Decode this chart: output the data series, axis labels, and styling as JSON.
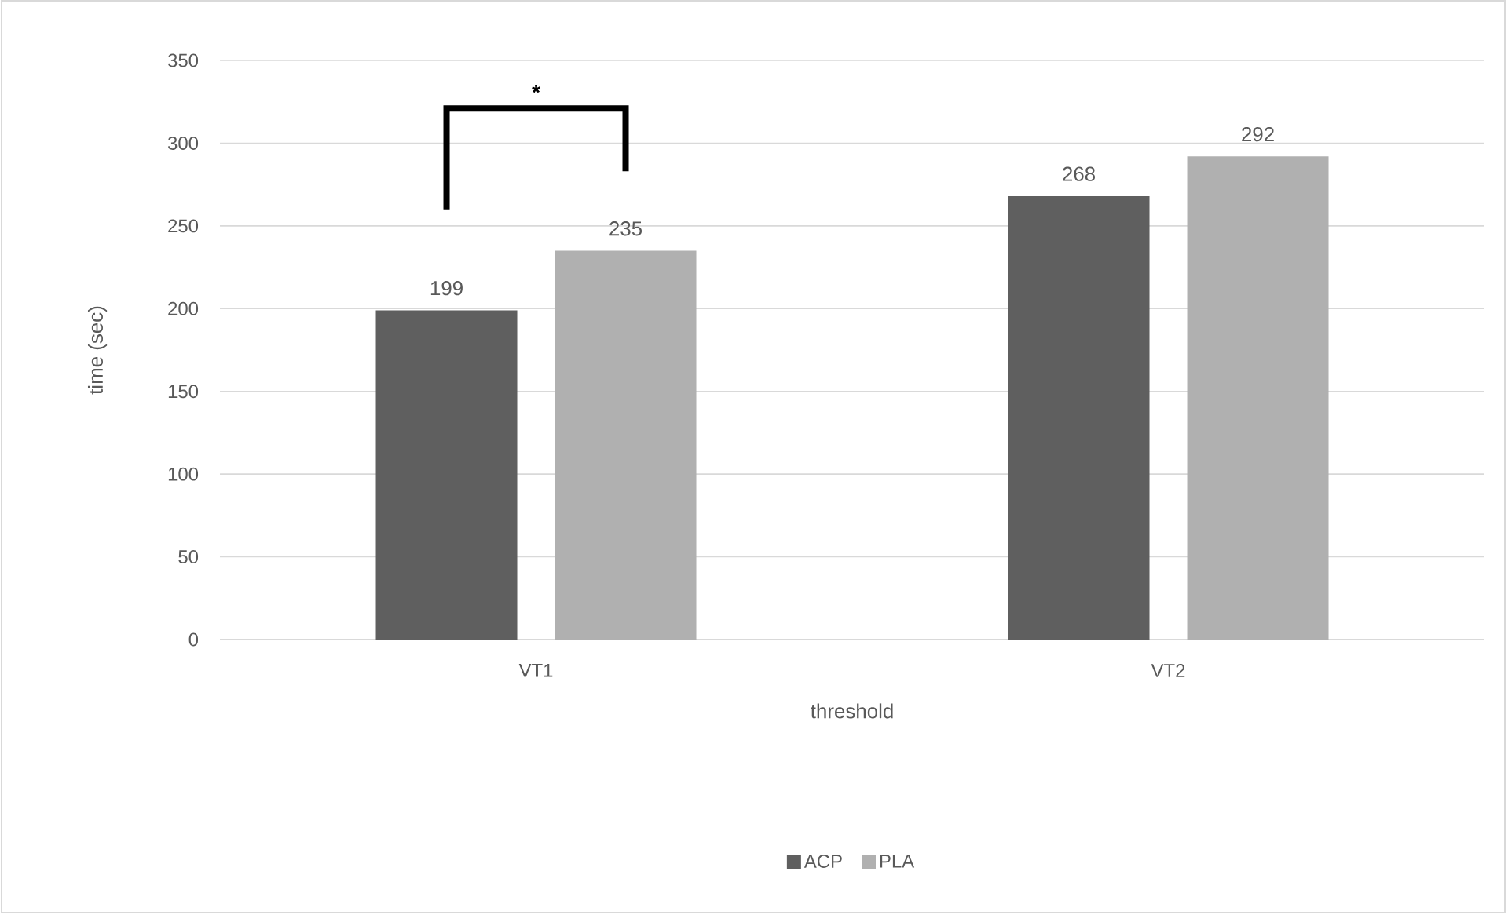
{
  "chart_data": {
    "type": "bar",
    "xlabel": "threshold",
    "ylabel": "time (sec)",
    "categories": [
      "VT1",
      "VT2"
    ],
    "series": [
      {
        "name": "ACP",
        "color": "#5f5f5f",
        "values": [
          199,
          268
        ]
      },
      {
        "name": "PLA",
        "color": "#b0b0b0",
        "values": [
          235,
          292
        ]
      }
    ],
    "ylim": [
      0,
      350
    ],
    "yticks": [
      0,
      50,
      100,
      150,
      200,
      250,
      300,
      350
    ],
    "grid": "y",
    "legend": "bottom",
    "data_labels": true,
    "annotations": [
      "*"
    ]
  }
}
